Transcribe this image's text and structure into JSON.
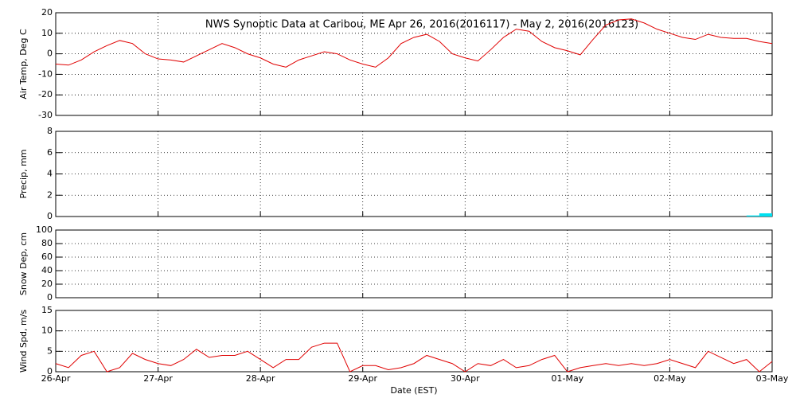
{
  "chart_data": [
    {
      "type": "line",
      "title": "NWS Synoptic Data at Caribou, ME   Apr 26, 2016(2016117) - May  2, 2016(2016123)",
      "y_label": "Air Temp, Deg C",
      "x": [
        0,
        0.125,
        0.25,
        0.375,
        0.5,
        0.625,
        0.75,
        0.875,
        1,
        1.125,
        1.25,
        1.375,
        1.5,
        1.625,
        1.75,
        1.875,
        2,
        2.125,
        2.25,
        2.375,
        2.5,
        2.625,
        2.75,
        2.875,
        3,
        3.125,
        3.25,
        3.375,
        3.5,
        3.625,
        3.75,
        3.875,
        4,
        4.125,
        4.25,
        4.375,
        4.5,
        4.625,
        4.75,
        4.875,
        5,
        5.125,
        5.25,
        5.375,
        5.5,
        5.625,
        5.75,
        5.875,
        6,
        6.125,
        6.25,
        6.375,
        6.5,
        6.625,
        6.75,
        6.875,
        7
      ],
      "series": [
        {
          "color": "#e00000",
          "values": [
            -5,
            -5.5,
            -3,
            1,
            4,
            6.5,
            5,
            0,
            -2.5,
            -3,
            -4,
            -1,
            2,
            5,
            3,
            0,
            -2,
            -5,
            -6.5,
            -3,
            -1,
            1,
            0,
            -3,
            -5,
            -6.5,
            -2,
            5,
            8,
            9.5,
            6,
            0,
            -2,
            -3.5,
            2,
            8,
            12,
            11,
            6,
            3,
            1.5,
            -0.5,
            7,
            14,
            16.5,
            17,
            15,
            12,
            10,
            8,
            7,
            9.5,
            8,
            7.5,
            7.5,
            6,
            5
          ]
        }
      ],
      "xlim": [
        0,
        7
      ],
      "xticks": [
        0,
        1,
        2,
        3,
        4,
        5,
        6,
        7
      ],
      "ylim": [
        -30,
        20
      ],
      "yticks": [
        -30,
        -20,
        -10,
        0,
        10,
        20
      ],
      "grid": true
    },
    {
      "type": "bar",
      "y_label": "Precip, mm",
      "x": [
        6.75,
        6.875
      ],
      "series": [
        {
          "color": "#00e0f0",
          "values": [
            0.1,
            0.3
          ]
        }
      ],
      "xlim": [
        0,
        7
      ],
      "xticks": [
        0,
        1,
        2,
        3,
        4,
        5,
        6,
        7
      ],
      "ylim": [
        0,
        8
      ],
      "yticks": [
        0,
        2,
        4,
        6,
        8
      ],
      "grid": true
    },
    {
      "type": "line",
      "y_label": "Snow Dep, cm",
      "x": [],
      "series": [],
      "xlim": [
        0,
        7
      ],
      "xticks": [
        0,
        1,
        2,
        3,
        4,
        5,
        6,
        7
      ],
      "ylim": [
        0,
        100
      ],
      "yticks": [
        0,
        20,
        40,
        60,
        80,
        100
      ],
      "grid": true
    },
    {
      "type": "line",
      "y_label": "Wind Spd, m/s",
      "x_label": "Date (EST)",
      "x": [
        0,
        0.125,
        0.25,
        0.375,
        0.5,
        0.625,
        0.75,
        0.875,
        1,
        1.125,
        1.25,
        1.375,
        1.5,
        1.625,
        1.75,
        1.875,
        2,
        2.125,
        2.25,
        2.375,
        2.5,
        2.625,
        2.75,
        2.875,
        3,
        3.125,
        3.25,
        3.375,
        3.5,
        3.625,
        3.75,
        3.875,
        4,
        4.125,
        4.25,
        4.375,
        4.5,
        4.625,
        4.75,
        4.875,
        5,
        5.125,
        5.25,
        5.375,
        5.5,
        5.625,
        5.75,
        5.875,
        6,
        6.125,
        6.25,
        6.375,
        6.5,
        6.625,
        6.75,
        6.875,
        7
      ],
      "series": [
        {
          "color": "#e00000",
          "values": [
            2,
            1,
            4,
            5,
            0,
            1,
            4.5,
            3,
            2,
            1.5,
            3,
            5.5,
            3.5,
            4,
            4,
            5,
            3,
            1,
            3,
            3,
            6,
            7,
            7,
            0,
            1.5,
            1.5,
            0.5,
            1,
            2,
            4,
            3,
            2,
            0,
            2,
            1.5,
            3,
            1,
            1.5,
            3,
            4,
            0,
            1,
            1.5,
            2,
            1.5,
            2,
            1.5,
            2,
            3,
            2,
            1,
            5,
            3.5,
            2,
            3,
            0,
            2.5
          ]
        }
      ],
      "xlim": [
        0,
        7
      ],
      "xticks": [
        {
          "value": 0,
          "label": "26-Apr"
        },
        {
          "value": 1,
          "label": "27-Apr"
        },
        {
          "value": 2,
          "label": "28-Apr"
        },
        {
          "value": 3,
          "label": "29-Apr"
        },
        {
          "value": 4,
          "label": "30-Apr"
        },
        {
          "value": 5,
          "label": "01-May"
        },
        {
          "value": 6,
          "label": "02-May"
        },
        {
          "value": 7,
          "label": "03-May"
        }
      ],
      "ylim": [
        0,
        15
      ],
      "yticks": [
        0,
        5,
        10,
        15
      ],
      "grid": true
    }
  ]
}
